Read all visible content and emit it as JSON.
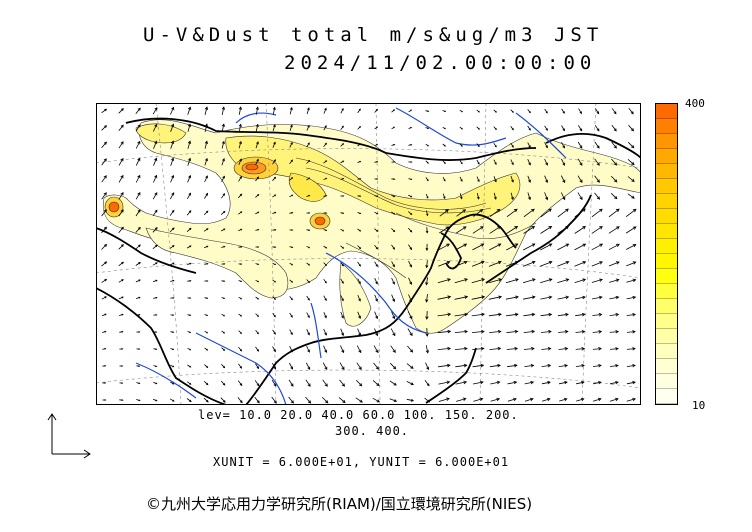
{
  "header": {
    "title_line1": "U-V&Dust total m/s&ug/m3 JST",
    "title_line2": "2024/11/02.00:00:00"
  },
  "colorbar": {
    "max_label": "400",
    "min_label": "10",
    "colors": [
      "#ff6a00",
      "#ff7f00",
      "#ff9500",
      "#ffa800",
      "#ffb800",
      "#ffc800",
      "#ffd200",
      "#ffdc00",
      "#ffe600",
      "#ffef00",
      "#fff700",
      "#ffff10",
      "#ffff40",
      "#ffff6a",
      "#ffff8c",
      "#ffffa8",
      "#ffffbe",
      "#ffffd2",
      "#ffffe2",
      "#fffff0"
    ]
  },
  "legend": {
    "levels_line1": "lev= 10.0 20.0 40.0 60.0 100. 150. 200.",
    "levels_line2": "300. 400.",
    "units_line": "XUNIT = 6.000E+01, YUNIT = 6.000E+01"
  },
  "footer": {
    "copyright": "©九州大学応用力学研究所(RIAM)/国立環境研究所(NIES)"
  },
  "map": {
    "dust_colors": {
      "light": "#fffcc8",
      "mid": "#fff37a",
      "high": "#ffd23c",
      "peak": "#ff6a00"
    },
    "coast_color": "#000000",
    "river_color": "#1e4bd8"
  }
}
